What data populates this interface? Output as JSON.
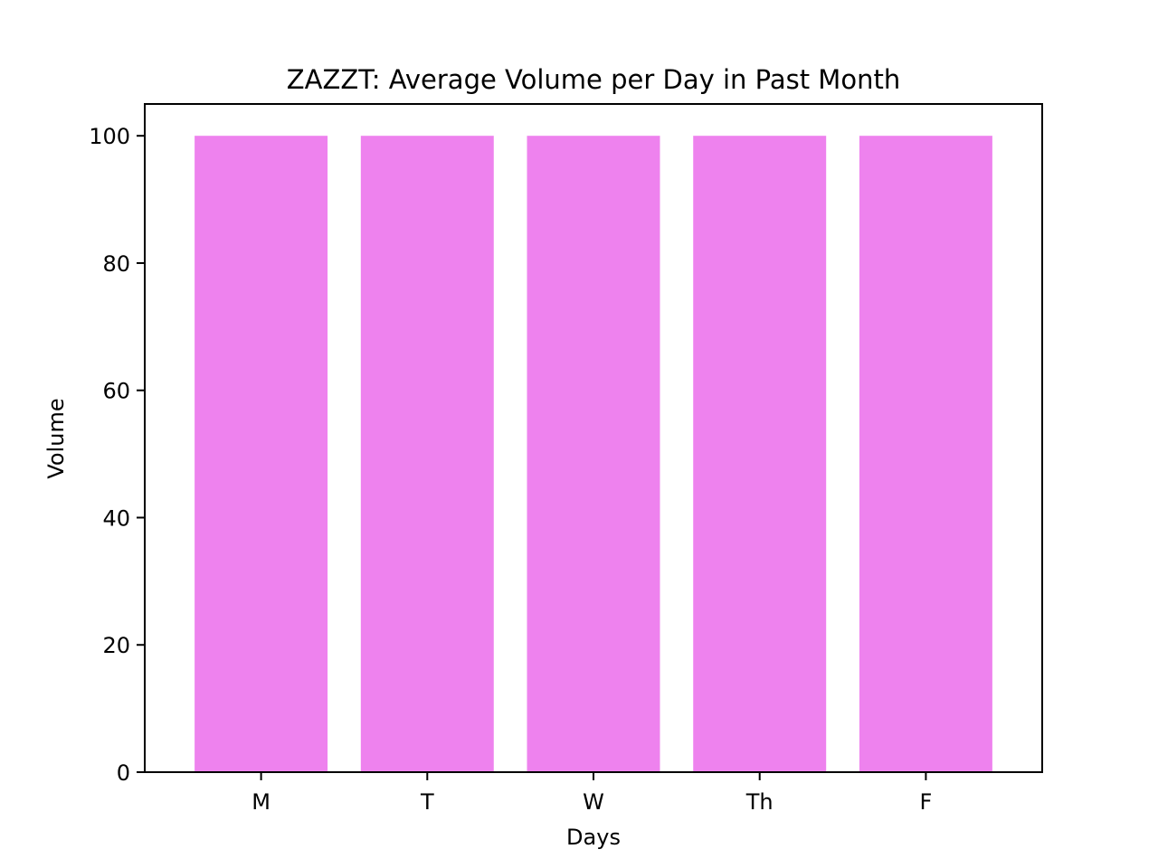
{
  "chart_data": {
    "type": "bar",
    "title": "ZAZZT: Average Volume per Day in Past Month",
    "xlabel": "Days",
    "ylabel": "Volume",
    "categories": [
      "M",
      "T",
      "W",
      "Th",
      "F"
    ],
    "values": [
      100,
      100,
      100,
      100,
      100
    ],
    "ylim": [
      0,
      105
    ],
    "yticks": [
      0,
      20,
      40,
      60,
      80,
      100
    ],
    "grid": false,
    "bar_color": "#ee82ee"
  }
}
